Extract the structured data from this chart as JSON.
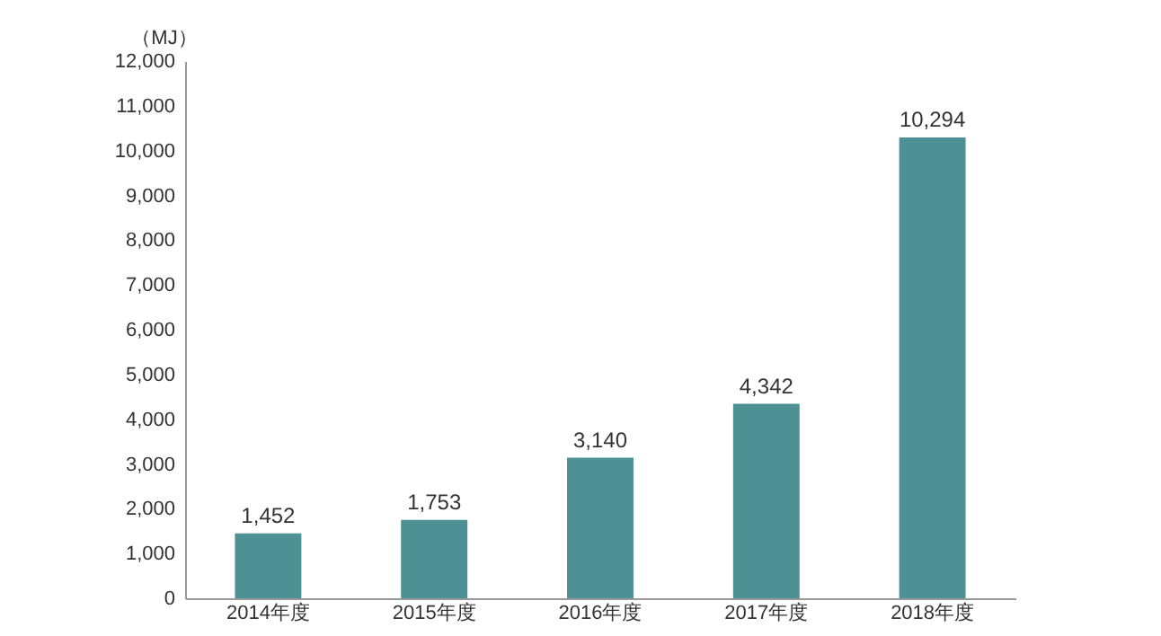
{
  "chart_data": {
    "type": "bar",
    "ylabel": "（MJ）",
    "categories": [
      "2014年度",
      "2015年度",
      "2016年度",
      "2017年度",
      "2018年度"
    ],
    "values": [
      1452,
      1753,
      3140,
      4342,
      10294
    ],
    "value_labels": [
      "1,452",
      "1,753",
      "3,140",
      "4,342",
      "10,294"
    ],
    "color": "#4d9194",
    "ylim": [
      0,
      12000
    ],
    "yticks": [
      0,
      {
        "value": 1000,
        "label": "1,000"
      },
      {
        "value": 2000,
        "label": "2,000"
      },
      {
        "value": 3000,
        "label": "3,000"
      },
      {
        "value": 4000,
        "label": "4,000"
      },
      {
        "value": 5000,
        "label": "5,000"
      },
      {
        "value": 6000,
        "label": "6,000"
      },
      {
        "value": 7000,
        "label": "7,000"
      },
      {
        "value": 8000,
        "label": "8,000"
      },
      {
        "value": 9000,
        "label": "9,000"
      },
      {
        "value": 10000,
        "label": "10,000"
      },
      {
        "value": 11000,
        "label": "11,000"
      },
      {
        "value": 12000,
        "label": "12,000"
      }
    ],
    "grid": false
  }
}
